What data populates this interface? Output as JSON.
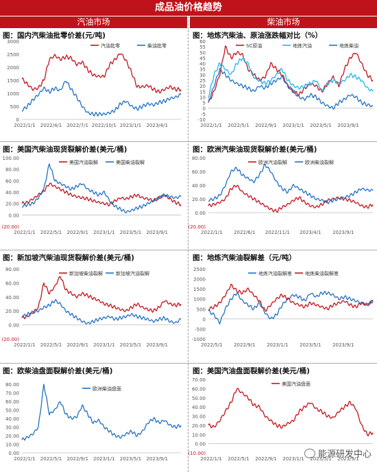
{
  "banner": "成品油价格趋势",
  "headers": {
    "left": "汽油市场",
    "right": "柴油市场"
  },
  "watermark": "能源研发中心",
  "colors": {
    "red": "#c0121b",
    "blue": "#1f6fc1",
    "banner": "#c0121b"
  },
  "chart_data": [
    {
      "type": "line",
      "title": "图：国内汽柴油批零价差(元/吨)",
      "x_ticks": [
        "2022/1/1",
        "2022/4/1",
        "2022/7/1",
        "2022/10/1",
        "2023/1/1",
        "2023/4/1"
      ],
      "y_ticks": [
        "0",
        "500",
        "1000",
        "1500",
        "2000",
        "2500",
        "3000"
      ],
      "ylim": [
        0,
        3000
      ],
      "legend_position": "top-right",
      "series": [
        {
          "name": "汽油批零",
          "color": "red",
          "values": [
            1550,
            1350,
            1150,
            1200,
            1500,
            2300,
            2450,
            2300,
            2400,
            2350,
            2100,
            2200,
            1900,
            1700,
            1650,
            1650,
            2100,
            2300,
            2550,
            2250,
            1800,
            1250,
            1250,
            1300,
            1150,
            1050,
            1150,
            1250,
            1150,
            1150
          ]
        },
        {
          "name": "柴油批零",
          "color": "blue",
          "values": [
            350,
            500,
            750,
            950,
            1200,
            1050,
            1200,
            1100,
            1500,
            1150,
            850,
            500,
            250,
            200,
            200,
            200,
            250,
            350,
            600,
            700,
            500,
            400,
            500,
            600,
            550,
            650,
            700,
            800,
            850,
            950
          ]
        }
      ]
    },
    {
      "type": "line",
      "title": "图：地炼汽柴油、原油涨跌幅对比（%）",
      "x_ticks": [
        "2022/1/1",
        "2022/5/1",
        "2022/9/1",
        "2023/1/1",
        "2023/5/1",
        "2023/9/1"
      ],
      "y_ticks": [
        "-10",
        "-5",
        "0",
        "5",
        "10",
        "15",
        "20",
        "25",
        "30",
        "35",
        "40",
        "45",
        "50",
        "55",
        "60"
      ],
      "ylim": [
        -10,
        60
      ],
      "legend_position": "top-right",
      "series": [
        {
          "name": "SC原油",
          "color": "red",
          "values": [
            5,
            15,
            30,
            55,
            45,
            50,
            48,
            35,
            30,
            25,
            28,
            40,
            35,
            30,
            20,
            15,
            12,
            18,
            22,
            20,
            15,
            22,
            28,
            20,
            35,
            45,
            50,
            40,
            30,
            25
          ]
        },
        {
          "name": "地炼汽油",
          "color": "cyan",
          "values": [
            10,
            30,
            40,
            35,
            30,
            40,
            45,
            40,
            28,
            25,
            22,
            25,
            30,
            35,
            25,
            20,
            18,
            20,
            22,
            25,
            15,
            22,
            25,
            22,
            25,
            30,
            28,
            25,
            18,
            15
          ]
        },
        {
          "name": "地炼柴油",
          "color": "blue",
          "values": [
            5,
            20,
            35,
            30,
            25,
            22,
            20,
            18,
            15,
            20,
            18,
            22,
            25,
            28,
            20,
            15,
            10,
            8,
            12,
            10,
            5,
            2,
            0,
            5,
            8,
            12,
            10,
            5,
            3,
            2
          ]
        }
      ]
    },
    {
      "type": "line",
      "title": "图：美国汽柴油现货裂解价差(美元/桶)",
      "x_ticks": [
        "2022/1/1",
        "2022/5/1",
        "2022/9/1",
        "2023/1/1",
        "2023/5/1",
        "2023/9/1"
      ],
      "y_ticks": [
        "(20.00)",
        "0.00",
        "20.00",
        "40.00",
        "60.00",
        "80.00",
        "100.00"
      ],
      "ylim": [
        -20,
        100
      ],
      "legend_position": "top-center",
      "series": [
        {
          "name": "美国汽油裂解",
          "color": "red",
          "values": [
            20,
            22,
            28,
            35,
            42,
            55,
            50,
            45,
            40,
            35,
            32,
            30,
            28,
            25,
            22,
            20,
            18,
            25,
            30,
            28,
            32,
            35,
            30,
            28,
            25,
            30,
            35,
            28,
            22,
            18
          ]
        },
        {
          "name": "美国柴油裂解",
          "color": "blue",
          "values": [
            15,
            18,
            20,
            30,
            45,
            90,
            60,
            55,
            50,
            45,
            50,
            55,
            45,
            40,
            35,
            40,
            25,
            15,
            10,
            5,
            8,
            12,
            15,
            20,
            25,
            30,
            35,
            32,
            30,
            32
          ]
        }
      ]
    },
    {
      "type": "line",
      "title": "图：欧洲汽柴油现货裂解价差(美元/桶)",
      "x_ticks": [
        "2022/1/1",
        "2022/6/1",
        "2022/11/1",
        "2023/4/1",
        "2023/9/1"
      ],
      "y_ticks": [
        "(20.00)",
        "0.00",
        "20.00",
        "40.00",
        "60.00",
        "80.00"
      ],
      "ylim": [
        -20,
        80
      ],
      "legend_position": "top-center",
      "series": [
        {
          "name": "欧洲汽油裂解",
          "color": "red",
          "values": [
            10,
            12,
            15,
            20,
            35,
            40,
            30,
            25,
            20,
            15,
            10,
            5,
            2,
            8,
            12,
            18,
            22,
            15,
            10,
            8,
            12,
            18,
            20,
            22,
            20,
            18,
            15,
            10,
            8,
            12
          ]
        },
        {
          "name": "欧洲柴油裂解",
          "color": "blue",
          "values": [
            18,
            20,
            25,
            40,
            60,
            65,
            55,
            50,
            45,
            55,
            70,
            60,
            45,
            35,
            30,
            40,
            35,
            30,
            25,
            20,
            18,
            15,
            18,
            20,
            22,
            25,
            30,
            35,
            33,
            32
          ]
        }
      ]
    },
    {
      "type": "line",
      "title": "图：新加坡汽柴油现货裂解价差(美元/桶)",
      "x_ticks": [
        "2022/1/1",
        "2022/5/1",
        "2022/9/1",
        "2023/1/1",
        "2023/5/1",
        "2023/9/1"
      ],
      "y_ticks": [
        "(20.00)",
        "0.00",
        "20.00",
        "40.00",
        "60.00",
        "80.00"
      ],
      "ylim": [
        -20,
        80
      ],
      "legend_position": "top-center",
      "series": [
        {
          "name": "新加坡柴油裂解",
          "color": "red",
          "values": [
            10,
            12,
            18,
            25,
            60,
            45,
            55,
            70,
            50,
            45,
            40,
            45,
            42,
            38,
            35,
            30,
            28,
            25,
            22,
            20,
            25,
            30,
            25,
            22,
            20,
            25,
            35,
            30,
            28,
            30
          ]
        },
        {
          "name": "新加坡汽油裂解",
          "color": "blue",
          "values": [
            12,
            15,
            18,
            20,
            25,
            28,
            35,
            30,
            20,
            15,
            10,
            5,
            2,
            5,
            8,
            10,
            12,
            8,
            10,
            12,
            15,
            12,
            10,
            8,
            5,
            8,
            10,
            5,
            3,
            8
          ]
        }
      ]
    },
    {
      "type": "line",
      "title": "图：地炼汽柴油裂解差（元/吨）",
      "x_ticks": [
        "2022/5/1",
        "2022/9/1",
        "2023/1/1",
        "2023/5/1",
        "2023/9/1"
      ],
      "y_ticks": [
        "-1000",
        "-500",
        "0",
        "500",
        "1000",
        "1500",
        "2000",
        "2500"
      ],
      "ylim": [
        -1000,
        2500
      ],
      "legend_position": "top-center",
      "series": [
        {
          "name": "地炼汽油裂解差",
          "color": "blue",
          "values": [
            400,
            200,
            -200,
            500,
            1000,
            1300,
            900,
            700,
            500,
            800,
            300,
            0,
            200,
            700,
            1000,
            1200,
            1100,
            900,
            1300,
            1100,
            1300,
            1300,
            1200,
            1000,
            1100,
            1000,
            900,
            800,
            700,
            900
          ]
        },
        {
          "name": "地炼柴油裂解差",
          "color": "red",
          "values": [
            500,
            600,
            800,
            1200,
            1700,
            1400,
            1300,
            1500,
            1200,
            900,
            400,
            700,
            1000,
            1200,
            1000,
            800,
            700,
            600,
            800,
            700,
            600,
            500,
            700,
            800,
            900,
            700,
            600,
            800,
            700,
            900
          ]
        }
      ]
    },
    {
      "type": "line",
      "title": "图：欧柴油盘面裂解价差(美元/桶)",
      "x_ticks": [
        "2022/1/1",
        "2022/5/1",
        "2022/9/1",
        "2023/1/1",
        "2023/5/1",
        "2023/9/1"
      ],
      "y_ticks": [
        "0.00",
        "10.00",
        "20.00",
        "30.00",
        "40.00",
        "50.00",
        "60.00",
        "70.00",
        "80.00"
      ],
      "ylim": [
        0,
        80
      ],
      "legend_position": "top-center",
      "series": [
        {
          "name": "欧洲柴油盘面",
          "color": "blue",
          "values": [
            15,
            18,
            22,
            30,
            80,
            45,
            50,
            60,
            45,
            40,
            42,
            55,
            45,
            35,
            38,
            30,
            25,
            20,
            18,
            22,
            25,
            20,
            25,
            35,
            40,
            35,
            38,
            32,
            30,
            32
          ]
        }
      ]
    },
    {
      "type": "line",
      "title": "图：美国汽油盘面裂解价差(美元/桶)",
      "x_ticks": [
        "2022/1/1",
        "2022/5/1",
        "2022/9/1",
        "2023/1/1",
        "2023/5/1",
        "2023/9/1"
      ],
      "y_ticks": [
        "(10.00)",
        "0.00",
        "10.00",
        "20.00",
        "30.00",
        "40.00",
        "50.00",
        "60.00",
        "70.00"
      ],
      "ylim": [
        -10,
        70
      ],
      "legend_position": "top-center",
      "series": [
        {
          "name": "美国汽油盘面",
          "color": "red",
          "values": [
            20,
            18,
            25,
            35,
            45,
            60,
            55,
            50,
            42,
            40,
            30,
            25,
            20,
            18,
            22,
            25,
            35,
            40,
            45,
            38,
            35,
            30,
            28,
            35,
            40,
            45,
            38,
            20,
            10,
            12
          ]
        }
      ]
    }
  ]
}
